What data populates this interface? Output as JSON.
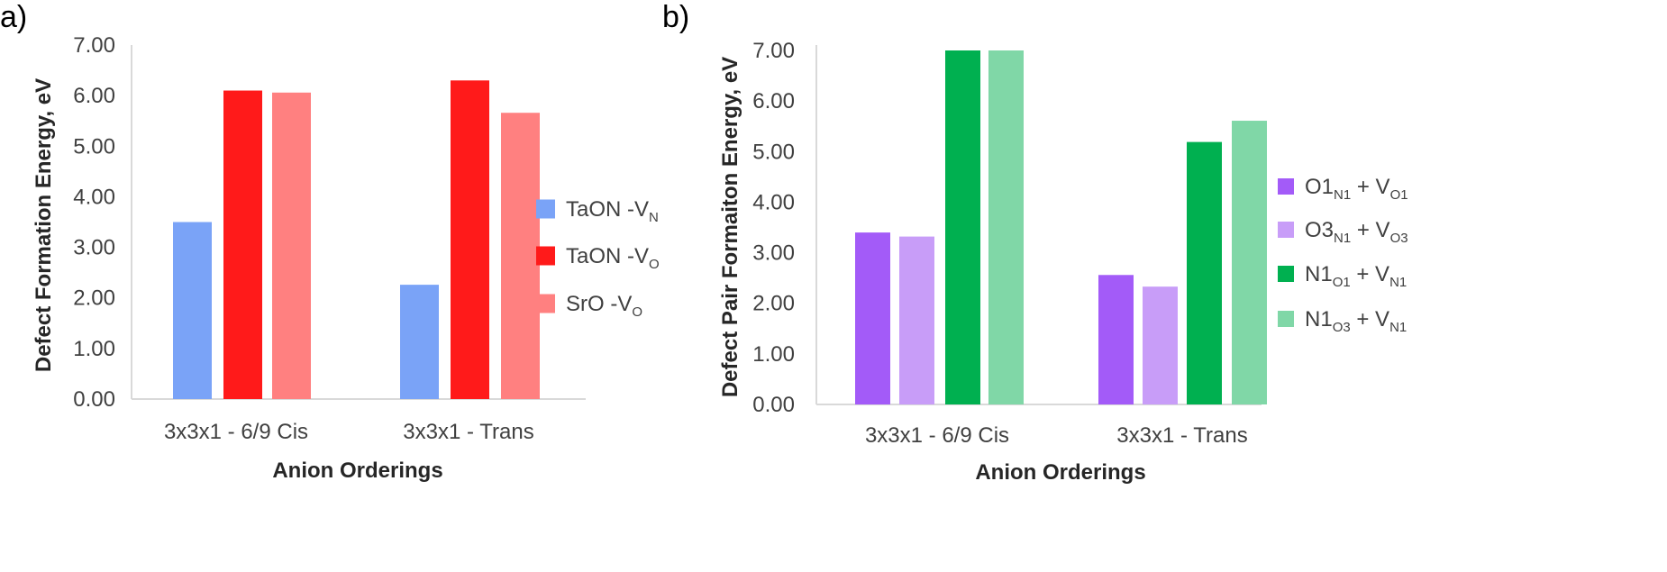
{
  "chart_data": [
    {
      "panel_label": "a)",
      "type": "bar",
      "categories": [
        "3x3x1 - 6/9 Cis",
        "3x3x1 - Trans"
      ],
      "xlabel": "Anion Orderings",
      "ylabel": "Defect Formation Energy, eV",
      "ylim": [
        0,
        7
      ],
      "yticks": [
        "0.00",
        "1.00",
        "2.00",
        "3.00",
        "4.00",
        "5.00",
        "6.00",
        "7.00"
      ],
      "grid": false,
      "legend_position": "right",
      "series": [
        {
          "name": "TaON -V",
          "name_sub": "N",
          "color": "#7aa3f7",
          "values": [
            3.5,
            2.26
          ]
        },
        {
          "name": "TaON -V",
          "name_sub": "O",
          "color": "#ff1a1a",
          "values": [
            6.1,
            6.3
          ]
        },
        {
          "name": "SrO -V",
          "name_sub": "O",
          "color": "#ff8080",
          "values": [
            6.06,
            5.66
          ]
        }
      ]
    },
    {
      "panel_label": "b)",
      "type": "bar",
      "categories": [
        "3x3x1 - 6/9 Cis",
        "3x3x1 - Trans"
      ],
      "xlabel": "Anion Orderings",
      "ylabel": "Defect Pair Formaiton Energy, eV",
      "ylim": [
        0,
        7
      ],
      "yticks": [
        "0.00",
        "1.00",
        "2.00",
        "3.00",
        "4.00",
        "5.00",
        "6.00",
        "7.00"
      ],
      "grid": false,
      "legend_position": "right",
      "series": [
        {
          "name": "O1",
          "name_sub": "N1",
          "name_mid": " + V",
          "name_sub2": "O1",
          "color": "#a35bf8",
          "values": [
            3.4,
            2.56
          ]
        },
        {
          "name": "O3",
          "name_sub": "N1",
          "name_mid": " + V",
          "name_sub2": "O3",
          "color": "#c89df8",
          "values": [
            3.32,
            2.33
          ]
        },
        {
          "name": "N1",
          "name_sub": "O1",
          "name_mid": " + V",
          "name_sub2": "N1",
          "color": "#00b050",
          "values": [
            7.0,
            5.19
          ]
        },
        {
          "name": "N1",
          "name_sub": "O3",
          "name_mid": " + V",
          "name_sub2": "N1",
          "color": "#80d7a7",
          "values": [
            7.0,
            5.61
          ]
        }
      ]
    }
  ]
}
